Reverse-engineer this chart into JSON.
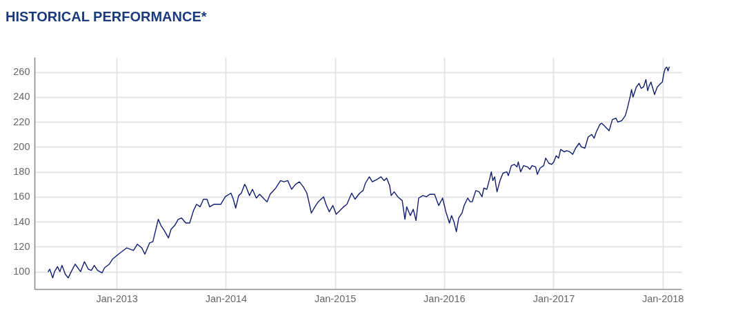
{
  "chart_data": {
    "type": "line",
    "title": "HISTORICAL PERFORMANCE*",
    "x": [
      "2012-05-17",
      "2012-05-22",
      "2012-06-01",
      "2012-06-07",
      "2012-06-17",
      "2012-06-25",
      "2012-07-02",
      "2012-07-13",
      "2012-07-23",
      "2012-08-02",
      "2012-08-15",
      "2012-09-02",
      "2012-09-15",
      "2012-09-28",
      "2012-10-08",
      "2012-10-18",
      "2012-10-29",
      "2012-11-13",
      "2012-11-21",
      "2012-12-07",
      "2012-12-18",
      "2013-01-07",
      "2013-02-03",
      "2013-02-26",
      "2013-03-11",
      "2013-03-26",
      "2013-04-05",
      "2013-04-21",
      "2013-05-02",
      "2013-05-20",
      "2013-05-29",
      "2013-06-09",
      "2013-06-23",
      "2013-07-02",
      "2013-07-14",
      "2013-07-26",
      "2013-08-06",
      "2013-08-20",
      "2013-09-02",
      "2013-09-15",
      "2013-09-25",
      "2013-10-07",
      "2013-10-18",
      "2013-10-30",
      "2013-11-08",
      "2013-11-22",
      "2013-12-15",
      "2013-12-30",
      "2014-01-18",
      "2014-01-26",
      "2014-02-03",
      "2014-02-13",
      "2014-02-22",
      "2014-03-05",
      "2014-03-10",
      "2014-03-21",
      "2014-03-31",
      "2014-04-13",
      "2014-04-24",
      "2014-05-10",
      "2014-05-19",
      "2014-05-29",
      "2014-06-17",
      "2014-07-03",
      "2014-07-14",
      "2014-07-27",
      "2014-08-09",
      "2014-08-22",
      "2014-09-04",
      "2014-09-17",
      "2014-09-29",
      "2014-10-04",
      "2014-10-14",
      "2014-10-26",
      "2014-11-06",
      "2014-11-24",
      "2014-12-02",
      "2014-12-13",
      "2014-12-25",
      "2015-01-05",
      "2015-01-18",
      "2015-01-30",
      "2015-02-10",
      "2015-02-26",
      "2015-03-09",
      "2015-03-25",
      "2015-04-05",
      "2015-04-13",
      "2015-04-26",
      "2015-05-06",
      "2015-05-22",
      "2015-06-04",
      "2015-06-14",
      "2015-06-23",
      "2015-07-03",
      "2015-07-08",
      "2015-07-18",
      "2015-07-30",
      "2015-08-14",
      "2015-08-23",
      "2015-08-29",
      "2015-09-10",
      "2015-09-20",
      "2015-09-29",
      "2015-10-08",
      "2015-10-22",
      "2015-11-03",
      "2015-11-14",
      "2015-11-30",
      "2015-12-14",
      "2015-12-27",
      "2016-01-07",
      "2016-01-19",
      "2016-01-26",
      "2016-02-03",
      "2016-02-11",
      "2016-02-19",
      "2016-03-01",
      "2016-03-08",
      "2016-03-20",
      "2016-03-28",
      "2016-04-04",
      "2016-04-16",
      "2016-04-27",
      "2016-05-07",
      "2016-05-13",
      "2016-05-23",
      "2016-06-01",
      "2016-06-07",
      "2016-06-12",
      "2016-06-18",
      "2016-06-26",
      "2016-07-06",
      "2016-07-16",
      "2016-07-29",
      "2016-08-03",
      "2016-08-13",
      "2016-08-23",
      "2016-09-01",
      "2016-09-05",
      "2016-09-13",
      "2016-09-23",
      "2016-10-06",
      "2016-10-14",
      "2016-10-21",
      "2016-11-02",
      "2016-11-08",
      "2016-11-17",
      "2016-11-29",
      "2016-12-06",
      "2016-12-16",
      "2016-12-26",
      "2017-01-02",
      "2017-01-10",
      "2017-01-18",
      "2017-01-25",
      "2017-02-06",
      "2017-02-14",
      "2017-02-25",
      "2017-03-06",
      "2017-03-16",
      "2017-03-28",
      "2017-04-04",
      "2017-04-16",
      "2017-04-27",
      "2017-05-09",
      "2017-05-17",
      "2017-05-24",
      "2017-06-05",
      "2017-06-11",
      "2017-06-20",
      "2017-07-06",
      "2017-07-17",
      "2017-07-29",
      "2017-08-04",
      "2017-08-17",
      "2017-08-29",
      "2017-09-04",
      "2017-09-09",
      "2017-09-15",
      "2017-09-19",
      "2017-09-24",
      "2017-10-05",
      "2017-10-14",
      "2017-10-21",
      "2017-10-29",
      "2017-11-06",
      "2017-11-12",
      "2017-11-17",
      "2017-11-23",
      "2017-11-29",
      "2017-12-05",
      "2017-12-14",
      "2017-12-26",
      "2017-12-31",
      "2018-01-05",
      "2018-01-10",
      "2018-01-15",
      "2018-01-19",
      "2018-01-23"
    ],
    "series": [
      {
        "color": "#101c6e",
        "values": [
          100,
          102,
          95,
          100,
          104,
          100,
          105,
          98,
          95,
          100,
          106,
          100,
          108,
          102,
          101,
          105,
          101,
          99,
          103,
          106,
          110,
          114,
          119,
          117,
          122,
          119,
          114,
          123,
          124,
          142,
          137,
          133,
          127,
          134,
          137,
          142,
          143,
          139,
          139,
          149,
          154,
          152,
          158,
          158,
          152,
          154,
          154,
          160,
          163,
          158,
          151,
          161,
          163,
          170,
          168,
          161,
          166,
          159,
          162,
          158,
          156,
          162,
          167,
          173,
          172,
          173,
          166,
          170,
          172,
          168,
          163,
          158,
          147,
          152,
          156,
          160,
          154,
          148,
          153,
          146,
          149,
          152,
          154,
          163,
          158,
          163,
          165,
          171,
          176,
          172,
          174,
          176,
          173,
          175,
          169,
          161,
          164,
          160,
          157,
          142,
          152,
          145,
          150,
          141,
          159,
          161,
          160,
          162,
          162,
          153,
          159,
          148,
          139,
          145,
          140,
          132,
          143,
          147,
          153,
          159,
          156,
          156,
          165,
          164,
          160,
          167,
          166,
          174,
          180,
          173,
          176,
          164,
          173,
          179,
          180,
          177,
          185,
          186,
          184,
          188,
          180,
          185,
          184,
          182,
          185,
          184,
          178,
          183,
          185,
          191,
          187,
          186,
          188,
          193,
          191,
          198,
          196,
          197,
          196,
          194,
          199,
          203,
          200,
          199,
          208,
          210,
          207,
          212,
          218,
          219,
          217,
          213,
          222,
          223,
          220,
          221,
          225,
          230,
          235,
          241,
          246,
          240,
          248,
          251,
          247,
          248,
          254,
          245,
          249,
          252,
          247,
          242,
          248,
          251,
          252,
          259,
          263,
          264,
          261,
          264
        ]
      }
    ],
    "xlim": [
      "2012-04-01",
      "2018-03-05"
    ],
    "ylim": [
      86,
      272
    ],
    "xticks": [
      {
        "value": "2013-01",
        "label": "Jan-2013"
      },
      {
        "value": "2014-01",
        "label": "Jan-2014"
      },
      {
        "value": "2015-01",
        "label": "Jan-2015"
      },
      {
        "value": "2016-01",
        "label": "Jan-2016"
      },
      {
        "value": "2017-01",
        "label": "Jan-2017"
      },
      {
        "value": "2018-01",
        "label": "Jan-2018"
      }
    ],
    "yticks": [
      100,
      120,
      140,
      160,
      180,
      200,
      220,
      240,
      260
    ],
    "grid": true
  }
}
